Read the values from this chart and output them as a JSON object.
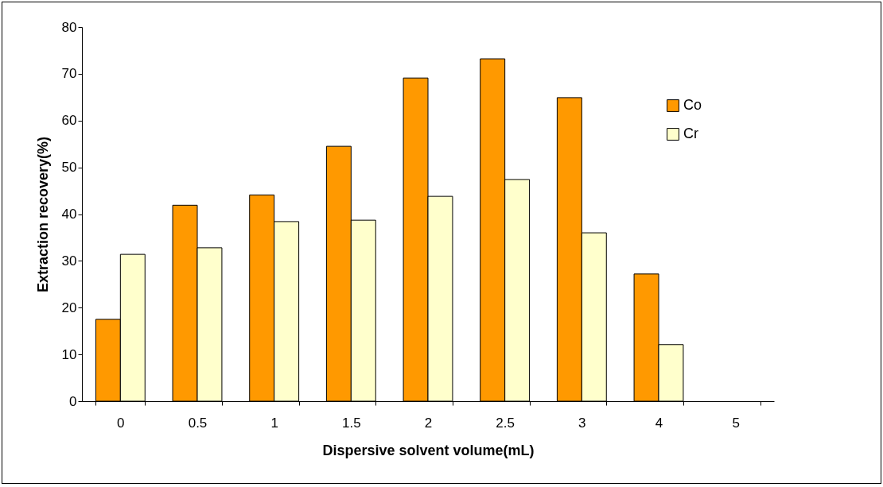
{
  "chart_data": {
    "type": "bar",
    "xlabel": "Dispersive solvent volume(mL)",
    "ylabel": "Extraction recovery(%)",
    "categories": [
      "0",
      "0.5",
      "1",
      "1.5",
      "2",
      "2.5",
      "3",
      "4",
      "5"
    ],
    "series": [
      {
        "name": "Co",
        "color": "#ff9900",
        "values": [
          17.5,
          41.9,
          44.1,
          54.5,
          69.1,
          73.2,
          64.9,
          27.2,
          null
        ]
      },
      {
        "name": "Cr",
        "color": "#ffffcc",
        "values": [
          31.4,
          32.8,
          38.4,
          38.7,
          43.8,
          47.4,
          36.0,
          12.1,
          null
        ]
      }
    ],
    "ylim": [
      0,
      80
    ],
    "yticks": [
      0,
      10,
      20,
      30,
      40,
      50,
      60,
      70,
      80
    ],
    "grid": false,
    "legend": "top right"
  }
}
